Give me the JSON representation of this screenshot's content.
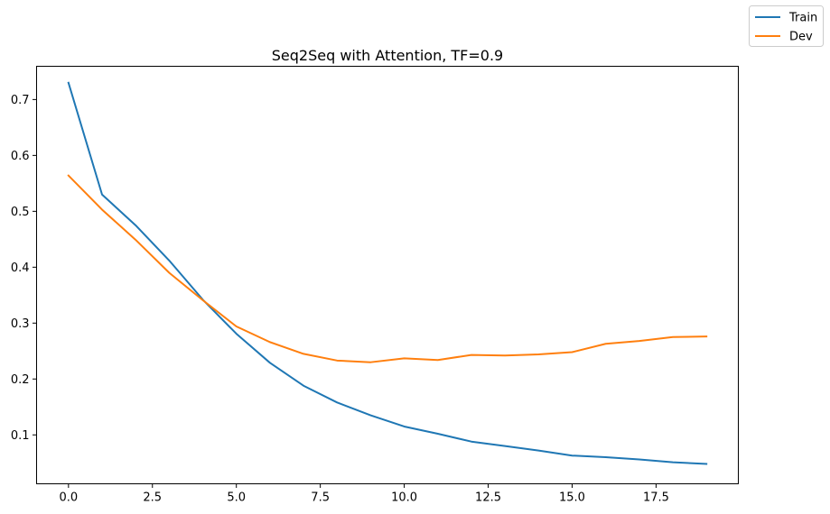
{
  "chart_data": {
    "type": "line",
    "title": "Seq2Seq with Attention, TF=0.9",
    "xlabel": "",
    "ylabel": "",
    "xlim": [
      -0.95,
      19.95
    ],
    "ylim": [
      0.0125,
      0.7595
    ],
    "xticks": [
      0.0,
      2.5,
      5.0,
      7.5,
      10.0,
      12.5,
      15.0,
      17.5
    ],
    "xtick_labels": [
      "0.0",
      "2.5",
      "5.0",
      "7.5",
      "10.0",
      "12.5",
      "15.0",
      "17.5"
    ],
    "yticks": [
      0.1,
      0.2,
      0.3,
      0.4,
      0.5,
      0.6,
      0.7
    ],
    "ytick_labels": [
      "0.1",
      "0.2",
      "0.3",
      "0.4",
      "0.5",
      "0.6",
      "0.7"
    ],
    "grid": false,
    "legend_position": "top-right",
    "x": [
      0,
      1,
      2,
      3,
      4,
      5,
      6,
      7,
      8,
      9,
      10,
      11,
      12,
      13,
      14,
      15,
      16,
      17,
      18,
      19
    ],
    "series": [
      {
        "name": "Train",
        "color": "#1f77b4",
        "values": [
          0.73,
          0.53,
          0.475,
          0.412,
          0.342,
          0.281,
          0.229,
          0.188,
          0.158,
          0.135,
          0.115,
          0.102,
          0.088,
          0.08,
          0.072,
          0.063,
          0.06,
          0.056,
          0.051,
          0.048
        ]
      },
      {
        "name": "Dev",
        "color": "#ff7f0e",
        "values": [
          0.564,
          0.503,
          0.449,
          0.39,
          0.341,
          0.294,
          0.266,
          0.245,
          0.233,
          0.23,
          0.237,
          0.234,
          0.243,
          0.242,
          0.244,
          0.248,
          0.263,
          0.268,
          0.275,
          0.276
        ]
      }
    ]
  }
}
